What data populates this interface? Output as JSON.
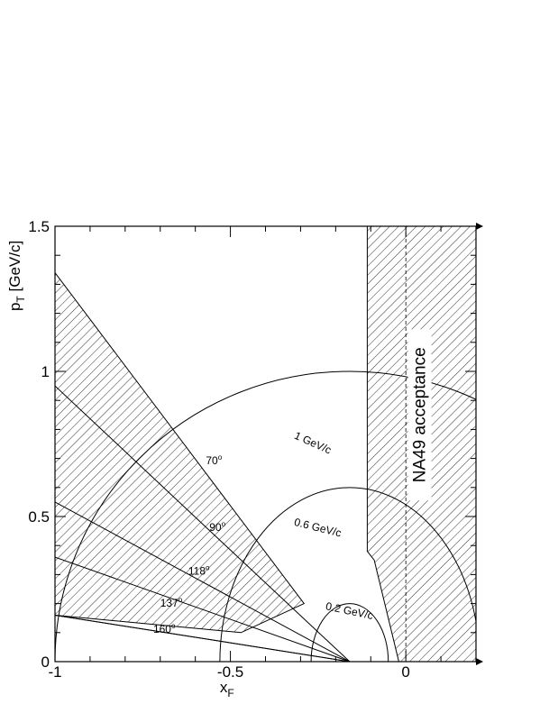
{
  "chart_data": {
    "type": "line",
    "title": "",
    "xlabel": {
      "main": "x",
      "sub": "F"
    },
    "ylabel": {
      "main": "p",
      "sub": "T",
      "unit": " [GeV/c]"
    },
    "xlim": [
      -1.0,
      0.2
    ],
    "ylim": [
      0.0,
      1.5
    ],
    "x_ticks": [
      {
        "value": -1.0,
        "label": "-1"
      },
      {
        "value": -0.5,
        "label": "-0.5"
      },
      {
        "value": 0.0,
        "label": "0"
      }
    ],
    "y_ticks": [
      {
        "value": 0.0,
        "label": "0"
      },
      {
        "value": 0.5,
        "label": "0.5"
      },
      {
        "value": 1.0,
        "label": "1"
      },
      {
        "value": 1.5,
        "label": "1.5"
      }
    ],
    "grid": false,
    "x_origin_point": -0.16,
    "momentum_circles": [
      {
        "momentum": 1.0,
        "label": "1 GeV/c",
        "center_x": -0.16,
        "radius_x": 0.84,
        "radius_y": 1.0
      },
      {
        "momentum": 0.6,
        "label": "0.6 GeV/c",
        "center_x": -0.16,
        "radius_x": 0.37,
        "radius_y": 0.6
      },
      {
        "momentum": 0.2,
        "label": "0.2 GeV/c",
        "center_x": -0.16,
        "radius_x": 0.11,
        "radius_y": 0.2
      }
    ],
    "angle_lines": [
      {
        "label": "70",
        "x_end": -1.0,
        "y_end": 0.95
      },
      {
        "label": "90",
        "x_end": -1.0,
        "y_end": 0.55
      },
      {
        "label": "118",
        "x_end": -1.0,
        "y_end": 0.36
      },
      {
        "label": "137",
        "x_end": -1.0,
        "y_end": 0.16
      },
      {
        "label": "160",
        "x_end": -1.0,
        "y_end": 0.16
      }
    ],
    "hatched_regions": [
      {
        "name": "backward-wedge",
        "points": [
          [
            -1.0,
            1.34
          ],
          [
            -0.29,
            0.2
          ],
          [
            -0.47,
            0.1
          ],
          [
            -1.0,
            0.16
          ]
        ]
      },
      {
        "name": "NA49 acceptance",
        "label": "NA49 acceptance",
        "points": [
          [
            -0.11,
            1.5
          ],
          [
            0.2,
            1.5
          ],
          [
            0.2,
            0.0
          ],
          [
            -0.02,
            0.0
          ],
          [
            -0.09,
            0.35
          ],
          [
            -0.11,
            0.38
          ]
        ]
      }
    ],
    "acceptance_boundary_x": 0.0,
    "degree_symbol": "o"
  }
}
